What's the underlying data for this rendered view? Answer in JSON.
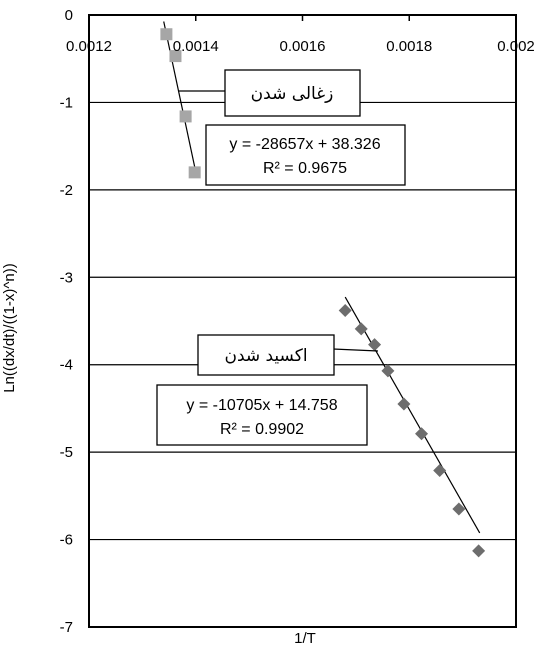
{
  "chart_data": {
    "type": "scatter",
    "xlabel": "1/T",
    "ylabel": "Ln((dx/dt)/((1-x)^n))",
    "xlim": [
      0.0012,
      0.002
    ],
    "ylim": [
      -7,
      0
    ],
    "x_ticks": [
      "0.0012",
      "0.0014",
      "0.0016",
      "0.0018",
      "0.002"
    ],
    "y_ticks": [
      "0",
      "-1",
      "-2",
      "-3",
      "-4",
      "-5",
      "-6",
      "-7"
    ],
    "x_axis_at_top": true,
    "grid": "horizontal",
    "series": [
      {
        "name": "زغالی شدن",
        "marker": "square",
        "color": "#a6a6a6",
        "points": [
          {
            "x": 0.001345,
            "y": -0.22
          },
          {
            "x": 0.001362,
            "y": -0.47
          },
          {
            "x": 0.001381,
            "y": -1.16
          },
          {
            "x": 0.001398,
            "y": -1.8
          }
        ],
        "trendline": {
          "x_range": [
            0.00134,
            0.0014
          ],
          "equation": "y = -28657x + 38.326",
          "r2": "R² = 0.9675"
        }
      },
      {
        "name": "اکسید شدن",
        "marker": "diamond",
        "color": "#6d6d6d",
        "points": [
          {
            "x": 0.00168,
            "y": -3.38
          },
          {
            "x": 0.00171,
            "y": -3.59
          },
          {
            "x": 0.001735,
            "y": -3.77
          },
          {
            "x": 0.00176,
            "y": -4.07
          },
          {
            "x": 0.00179,
            "y": -4.45
          },
          {
            "x": 0.001823,
            "y": -4.79
          },
          {
            "x": 0.001857,
            "y": -5.21
          },
          {
            "x": 0.001893,
            "y": -5.65
          },
          {
            "x": 0.00193,
            "y": -6.13
          }
        ],
        "trendline": {
          "x_range": [
            0.00168,
            0.001932
          ],
          "equation": "y = -10705x + 14.758",
          "r2": "R² = 0.9902"
        }
      }
    ]
  },
  "colors": {
    "trendline": "#000000",
    "grid": "#000000",
    "axis": "#000000"
  }
}
